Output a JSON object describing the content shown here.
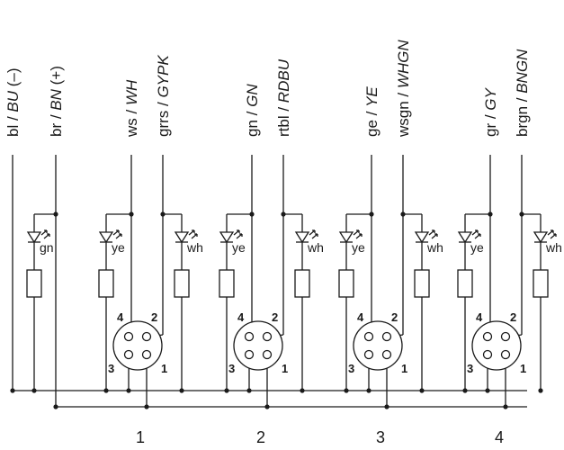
{
  "wires": [
    {
      "code": "bl",
      "intl": "BU",
      "suffix": " (–)"
    },
    {
      "code": "br",
      "intl": "BN",
      "suffix": " (+)"
    },
    {
      "code": "ws",
      "intl": "WH",
      "suffix": ""
    },
    {
      "code": "grrs",
      "intl": "GYPK",
      "suffix": ""
    },
    {
      "code": "gn",
      "intl": "GN",
      "suffix": ""
    },
    {
      "code": "rtbl",
      "intl": "RDBU",
      "suffix": ""
    },
    {
      "code": "ge",
      "intl": "YE",
      "suffix": ""
    },
    {
      "code": "wsgn",
      "intl": "WHGN",
      "suffix": ""
    },
    {
      "code": "gr",
      "intl": "GY",
      "suffix": ""
    },
    {
      "code": "brgn",
      "intl": "BNGN",
      "suffix": ""
    }
  ],
  "power_led": {
    "label": "gn"
  },
  "ports": [
    {
      "label": "1",
      "led_left": "ye",
      "led_right": "wh",
      "pins": {
        "p1": "1",
        "p2": "2",
        "p3": "3",
        "p4": "4"
      }
    },
    {
      "label": "2",
      "led_left": "ye",
      "led_right": "wh",
      "pins": {
        "p1": "1",
        "p2": "2",
        "p3": "3",
        "p4": "4"
      }
    },
    {
      "label": "3",
      "led_left": "ye",
      "led_right": "wh",
      "pins": {
        "p1": "1",
        "p2": "2",
        "p3": "3",
        "p4": "4"
      }
    },
    {
      "label": "4",
      "led_left": "ye",
      "led_right": "wh",
      "pins": {
        "p1": "1",
        "p2": "2",
        "p3": "3",
        "p4": "4"
      }
    }
  ]
}
